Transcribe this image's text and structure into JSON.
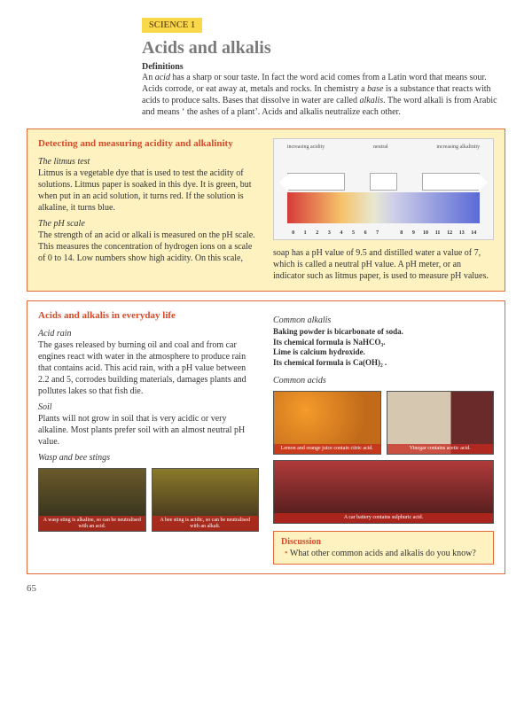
{
  "tag": "SCIENCE 1",
  "title": "Acids and alkalis",
  "definitions_heading": "Definitions",
  "intro_html": "An <i>acid</i> has a sharp or sour taste. In fact the word acid comes from a Latin word that means sour. Acids corrode, or eat away at, metals and rocks. In chemistry a <i>base</i> is a substance that reacts with acids to produce salts. Bases that dissolve in water are called <i>alkalis</i>. The word alkali is from Arabic and means ‘ the ashes of a plant’. Acids and alkalis neutralize each other.",
  "card1": {
    "title": "Detecting and measuring acidity and alkalinity",
    "litmus_head": "The litmus test",
    "litmus_body": "Litmus is a vegetable dye that is used to test the acidity of solutions. Litmus paper is soaked in this dye. It is green, but when put in an acid solution, it turns red. If the solution is alkaline, it turns blue.",
    "ph_head": "The pH scale",
    "ph_body_left": "The strength of an acid or alkali is measured on the pH scale. This measures the concentration of hydrogen ions on a scale of 0 to 14. Low numbers show high acidity. On this scale,",
    "ph_body_right": "soap has a pH value of 9.5 and distilled water a value of 7, which is called a neutral pH value. A pH meter, or an indicator such as litmus paper, is used to measure pH values.",
    "chart_labels": {
      "left": "increasing acidity",
      "mid": "neutral",
      "right": "increasing alkalinity"
    }
  },
  "card2": {
    "title": "Acids and alkalis in everyday life",
    "acid_rain_head": "Acid rain",
    "acid_rain_body": "The gases released by burning oil and coal and from car engines react with water in the atmosphere to produce rain that contains acid. This acid rain, with a pH value between 2.2 and 5, corrodes building materials, damages plants and pollutes lakes so that fish die.",
    "soil_head": "Soil",
    "soil_body": "Plants will not grow in soil that is very acidic or very alkaline. Most plants prefer soil with an almost neutral pH value.",
    "wasp_head": "Wasp and bee stings",
    "wasp_caption": "A wasp sting is alkaline, so can be neutralised with an acid.",
    "bee_caption": "A bee sting is acidic, so can be neutralised with an alkali.",
    "common_alkalis_head": "Common alkalis",
    "alkali_lines": [
      "Baking powder is bicarbonate of soda.",
      "Its chemical formula is NaHCO₃.",
      "Lime is calcium hydroxide.",
      "Its chemical formula is Ca(OH)₂ ."
    ],
    "common_acids_head": "Common acids",
    "orange_caption": "Lemon and orange juice contain citric acid.",
    "battery_caption": "A car battery contains sulphuric acid.",
    "vinegar_caption": "Vinegar contains acetic acid.",
    "discussion_title": "Discussion",
    "discussion_q": "What other common acids and alkalis do you know?"
  },
  "page_num": "65"
}
